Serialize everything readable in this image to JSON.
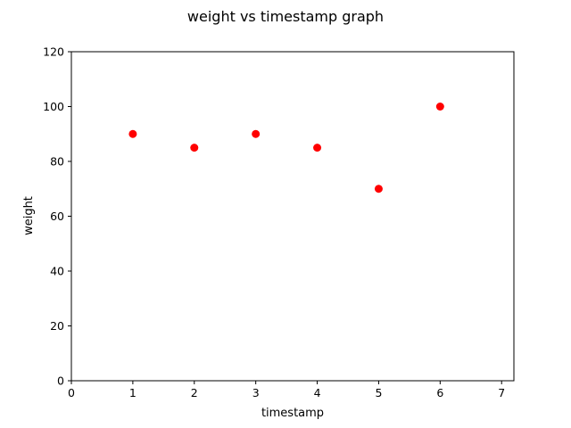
{
  "chart_data": {
    "type": "scatter",
    "title": "weight vs timestamp graph",
    "xlabel": "timestamp",
    "ylabel": "weight",
    "xlim": [
      0,
      7.2
    ],
    "ylim": [
      0,
      120
    ],
    "xticks": [
      0,
      1,
      2,
      3,
      4,
      5,
      6,
      7
    ],
    "yticks": [
      0,
      20,
      40,
      60,
      80,
      100,
      120
    ],
    "grid": false,
    "series": [
      {
        "color": "#ff0000",
        "x": [
          1,
          2,
          3,
          4,
          5,
          6
        ],
        "y": [
          90,
          85,
          90,
          85,
          70,
          100
        ]
      }
    ]
  }
}
